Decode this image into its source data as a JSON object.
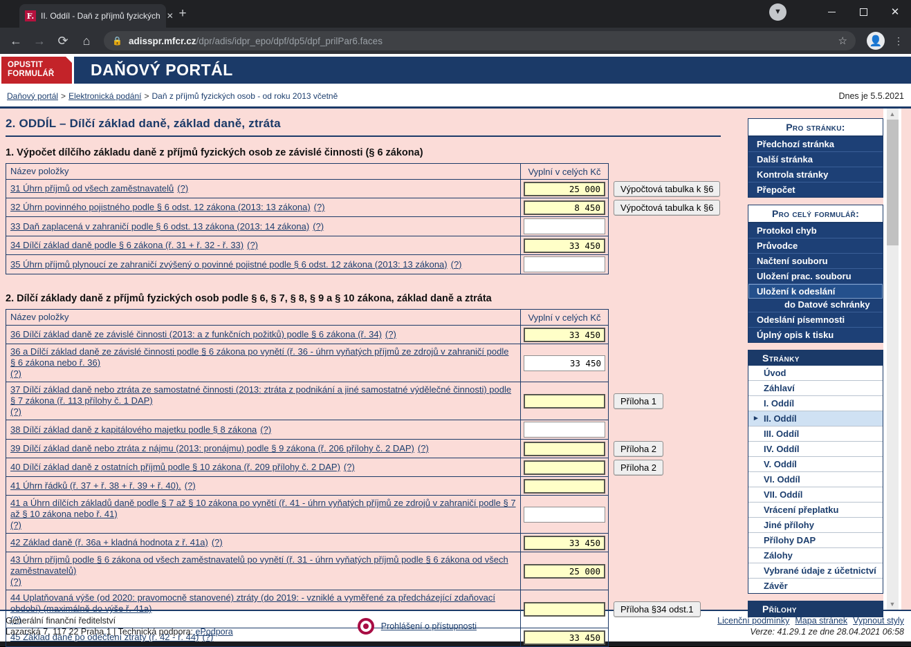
{
  "colors": {
    "navy": "#1b3a68",
    "brand_red": "#c32329",
    "page_pink": "#fbdcd8",
    "input_yellow": "#ffffc8",
    "selected_page_blue": "#cfe1f3",
    "accessibility_crimson": "#a80d44"
  },
  "browser": {
    "tab_title": "II. Oddíl - Daň z příjmů fyzických",
    "favicon_letter": "F.",
    "url_host": "adisspr.mfcr.cz",
    "url_path": "/dpr/adis/idpr_epo/dpf/dp5/dpf_prilPar6.faces"
  },
  "header": {
    "leave_button_line1": "OPUSTIT",
    "leave_button_line2": "FORMULÁŘ",
    "portal_title": "DAŇOVÝ PORTÁL"
  },
  "breadcrumb": {
    "link1": "Daňový portál",
    "link2": "Elektronická podání",
    "current": "Daň z příjmů fyzických osob - od roku 2013 včetně",
    "separator": ">",
    "date_text": "Dnes je 5.5.2021"
  },
  "page": {
    "title": "2. ODDÍL – Dílčí základ daně, základ daně, ztráta",
    "sections": [
      {
        "title": "1. Výpočet dílčího základu daně z příjmů fyzických osob ze závislé činnosti (§ 6 zákona)",
        "columns": [
          "Název položky",
          "Vyplní v celých Kč"
        ],
        "rows": [
          {
            "label": "31 Úhrn příjmů od všech zaměstnavatelů",
            "help": "(?)",
            "value": "25 000",
            "style": "yellow",
            "action": "Výpočtová tabulka k §6"
          },
          {
            "label": "32 Úhrn povinného pojistného podle § 6 odst. 12 zákona (2013: 13 zákona)",
            "help": "(?)",
            "value": "8 450",
            "style": "yellow",
            "action": "Výpočtová tabulka k §6"
          },
          {
            "label": "33 Daň zaplacená v zahraničí podle § 6 odst. 13 zákona (2013: 14 zákona)",
            "help": "(?)",
            "value": "",
            "style": "white",
            "action": null
          },
          {
            "label": "34 Dílčí základ daně podle § 6 zákona (ř. 31 + ř. 32 - ř. 33)",
            "help": "(?)",
            "value": "33 450",
            "style": "yellow",
            "action": null
          },
          {
            "label": "35 Úhrn příjmů plynoucí ze zahraničí zvýšený o povinné pojistné podle § 6 odst. 12 zákona (2013: 13 zákona)",
            "help": "(?)",
            "value": "",
            "style": "white",
            "action": null
          }
        ]
      },
      {
        "title": "2. Dílčí základy daně z příjmů fyzických osob podle § 6, § 7, § 8, § 9 a § 10 zákona, základ daně a ztráta",
        "columns": [
          "Název položky",
          "Vyplní v celých Kč"
        ],
        "rows": [
          {
            "label": "36 Dílčí základ daně ze závislé činnosti (2013: a z funkčních požitků) podle § 6 zákona (ř. 34)",
            "help": "(?)",
            "value": "33 450",
            "style": "yellow",
            "action": null
          },
          {
            "label": "36 a Dílčí základ daně ze závislé činnosti podle § 6 zákona po vynětí (ř. 36 - úhrn vyňatých příjmů ze zdrojů v zahraničí podle § 6 zákona nebo ř. 36)",
            "help": "(?)",
            "value": "33 450",
            "style": "white",
            "action": null
          },
          {
            "label": "37 Dílčí základ daně nebo ztráta ze samostatné činnosti (2013: ztráta z podnikání a jiné samostatné výdělečné činnosti) podle § 7 zákona (ř. 113 přílohy č. 1 DAP)",
            "help": "(?)",
            "value": "",
            "style": "yellow",
            "action": "Příloha 1"
          },
          {
            "label": "38 Dílčí základ daně z kapitálového majetku podle § 8 zákona",
            "help": "(?)",
            "value": "",
            "style": "white",
            "action": null
          },
          {
            "label": "39 Dílčí základ daně nebo ztráta z nájmu (2013: pronájmu) podle § 9 zákona (ř. 206 přílohy č. 2 DAP)",
            "help": "(?)",
            "value": "",
            "style": "yellow",
            "action": "Příloha 2"
          },
          {
            "label": "40 Dílčí základ daně z ostatních příjmů podle § 10 zákona (ř. 209 přílohy č. 2 DAP)",
            "help": "(?)",
            "value": "",
            "style": "yellow",
            "action": "Příloha 2"
          },
          {
            "label": "41 Úhrn řádků (ř. 37 + ř. 38 + ř. 39 + ř. 40).",
            "help": "(?)",
            "value": "",
            "style": "yellow",
            "action": null
          },
          {
            "label": "41 a Úhrn dílčích základů daně podle § 7 až § 10 zákona po vynětí (ř. 41 - úhrn vyňatých příjmů ze zdrojů v zahraničí podle § 7 až § 10 zákona nebo ř. 41)",
            "help": "(?)",
            "value": "",
            "style": "white",
            "action": null
          },
          {
            "label": "42 Základ daně (ř. 36a + kladná hodnota z ř. 41a)",
            "help": "(?)",
            "value": "33 450",
            "style": "yellow",
            "action": null
          },
          {
            "label": "43 Úhrn příjmů podle § 6 zákona od všech zaměstnavatelů po vynětí (ř. 31 - úhrn vyňatých příjmů podle § 6 zákona od všech zaměstnavatelů)",
            "help": "(?)",
            "value": "25 000",
            "style": "yellow",
            "action": null
          },
          {
            "label": "44 Uplatňovaná výše (od 2020: pravomocně stanovené) ztráty (do 2019: - vzniklé a vyměřené za předcházející zdaňovací období) (maximálně do výše ř. 41a)",
            "help": "(?)",
            "value": "",
            "style": "yellow",
            "action": "Příloha §34 odst.1"
          },
          {
            "label": "45 Základ daně po odečtení ztráty (ř. 42 - ř. 44)",
            "help": "(?)",
            "value": "33 450",
            "style": "yellow",
            "action": null
          }
        ]
      }
    ]
  },
  "sidebar": {
    "box_page": {
      "title": "Pro stránku:",
      "items": [
        "Předchozí stránka",
        "Další stránka",
        "Kontrola stránky",
        "Přepočet"
      ]
    },
    "box_form": {
      "title": "Pro celý formulář:",
      "items": [
        "Protokol chyb",
        "Průvodce",
        "Načtení souboru",
        "Uložení prac. souboru",
        {
          "line1": "Uložení k odeslání",
          "line2": "do Datové schránky",
          "highlight": true
        },
        "Odeslání písemnosti",
        "Úplný opis k tisku"
      ]
    },
    "box_pages": {
      "title": "Stránky",
      "selected": "II. Oddíl",
      "items": [
        "Úvod",
        "Záhlaví",
        "I. Oddíl",
        "II. Oddíl",
        "III. Oddíl",
        "IV. Oddíl",
        "V. Oddíl",
        "VI. Oddíl",
        "VII. Oddíl",
        "Vrácení přeplatku",
        "Jiné přílohy",
        "Přílohy DAP",
        "Zálohy",
        "Vybrané údaje z účetnictví",
        "Závěr"
      ]
    },
    "box_attachments": {
      "title": "Přílohy"
    }
  },
  "footer": {
    "org": "Generální finanční ředitelství",
    "address": "Lazarská 7, 117 22 Praha 1 | Technická podpora:",
    "support_link": "ePodpora",
    "accessibility_link": "Prohlášení o přístupnosti",
    "links": [
      "Licenční podmínky",
      "Mapa stránek",
      "Vypnout styly"
    ],
    "version": "Verze: 41.29.1 ze dne 28.04.2021 06:58"
  }
}
